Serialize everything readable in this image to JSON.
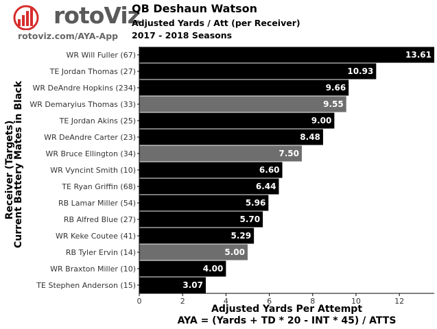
{
  "header": {
    "logo_text": "rotoViz",
    "logo_url": "rotoviz.com/AYA-App",
    "title": "QB Deshaun Watson",
    "subtitle": "Adjusted Yards / Att (per Receiver)",
    "seasons": "2017 - 2018 Seasons"
  },
  "axes": {
    "ylabel_line1": "Receiver (Targets)",
    "ylabel_line2": "Current Battery Mates in Black",
    "xlabel_line1": "Adjusted Yards Per Attempt",
    "xlabel_line2": "AYA = (Yards + TD * 20 - INT * 45) / ATTS"
  },
  "colors": {
    "current": "#000000",
    "former": "#6e6e6e",
    "label_text": "#ffffff",
    "logo_red": "#d62c2c"
  },
  "chart_data": {
    "type": "bar",
    "orientation": "horizontal",
    "categories": [
      "WR Will Fuller (67)",
      "TE Jordan Thomas (27)",
      "WR DeAndre Hopkins (234)",
      "WR Demaryius Thomas (33)",
      "TE Jordan Akins (25)",
      "WR DeAndre Carter (23)",
      "WR Bruce Ellington (34)",
      "WR Vyncint Smith (10)",
      "TE Ryan Griffin (68)",
      "RB Lamar Miller (54)",
      "RB Alfred Blue (27)",
      "WR Keke Coutee (41)",
      "RB Tyler Ervin (14)",
      "WR Braxton Miller (10)",
      "TE Stephen Anderson (15)"
    ],
    "values": [
      13.61,
      10.93,
      9.66,
      9.55,
      9.0,
      8.48,
      7.5,
      6.6,
      6.44,
      5.96,
      5.7,
      5.29,
      5.0,
      4.0,
      3.07
    ],
    "value_labels": [
      "13.61",
      "10.93",
      "9.66",
      "9.55",
      "9.00",
      "8.48",
      "7.50",
      "6.60",
      "6.44",
      "5.96",
      "5.70",
      "5.29",
      "5.00",
      "4.00",
      "3.07"
    ],
    "current_battery_mate": [
      true,
      true,
      true,
      false,
      true,
      true,
      false,
      true,
      true,
      true,
      true,
      true,
      false,
      true,
      true
    ],
    "xlim": [
      0,
      13.61
    ],
    "xticks": [
      0,
      2,
      4,
      6,
      8,
      10,
      12
    ],
    "xlabel": "Adjusted Yards Per Attempt",
    "ylabel": "Receiver (Targets)",
    "grid": false
  }
}
